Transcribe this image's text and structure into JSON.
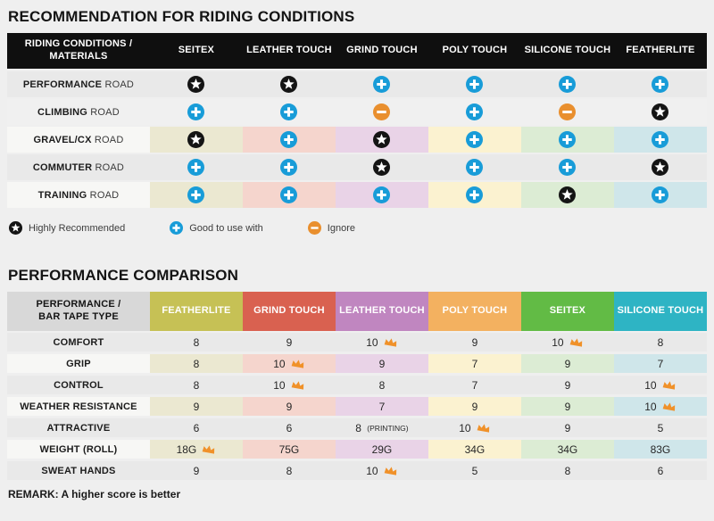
{
  "colors": {
    "page_bg": "#efefef",
    "table1_header_bg": "#0f0f0f",
    "row_gray_dark": "#e9e9e9",
    "row_gray_light": "#f0f0f0",
    "row_label_light": "#f7f7f5",
    "icon_star": "#141414",
    "icon_plus": "#189cd8",
    "icon_minus": "#e98f2e",
    "icon_crown": "#f09129",
    "tints": [
      "#ebe8d1",
      "#f5d5cd",
      "#e9d3e7",
      "#fbf2d0",
      "#dcecd4",
      "#cfe6ea"
    ],
    "t2_header_label_bg": "#d8d8d8"
  },
  "table1": {
    "title": "RECOMMENDATION FOR RIDING CONDITIONS",
    "header_label": "RIDING CONDITIONS / MATERIALS",
    "columns": [
      "SEITEX",
      "LEATHER TOUCH",
      "GRIND TOUCH",
      "POLY TOUCH",
      "SILICONE TOUCH",
      "FEATHERLITE"
    ],
    "rows": [
      {
        "label_strong": "PERFORMANCE",
        "label_rest": "ROAD",
        "shade": "dark",
        "cells": [
          "star",
          "star",
          "plus",
          "plus",
          "plus",
          "plus"
        ]
      },
      {
        "label_strong": "CLIMBING",
        "label_rest": "ROAD",
        "shade": "light",
        "cells": [
          "plus",
          "plus",
          "minus",
          "plus",
          "minus",
          "star"
        ]
      },
      {
        "label_strong": "GRAVEL/CX",
        "label_rest": "ROAD",
        "shade": "tinted",
        "cells": [
          "star",
          "plus",
          "star",
          "plus",
          "plus",
          "plus"
        ]
      },
      {
        "label_strong": "COMMUTER",
        "label_rest": "ROAD",
        "shade": "dark",
        "cells": [
          "plus",
          "plus",
          "star",
          "plus",
          "plus",
          "star"
        ]
      },
      {
        "label_strong": "TRAINING",
        "label_rest": "ROAD",
        "shade": "tinted",
        "cells": [
          "plus",
          "plus",
          "plus",
          "plus",
          "star",
          "plus"
        ]
      }
    ],
    "legend": [
      {
        "icon": "star",
        "label": "Highly Recommended"
      },
      {
        "icon": "plus",
        "label": "Good to use with"
      },
      {
        "icon": "minus",
        "label": "Ignore"
      }
    ]
  },
  "table2": {
    "title": "PERFORMANCE COMPARISON",
    "header_label": "PERFORMANCE / BAR TAPE TYPE",
    "columns": [
      {
        "label": "FEATHERLITE",
        "color": "#c6c155"
      },
      {
        "label": "GRIND TOUCH",
        "color": "#d96150"
      },
      {
        "label": "LEATHER TOUCH",
        "color": "#c086c0"
      },
      {
        "label": "POLY TOUCH",
        "color": "#f3b160"
      },
      {
        "label": "SEITEX",
        "color": "#62bb45"
      },
      {
        "label": "SILICONE TOUCH",
        "color": "#2eb4c4"
      }
    ],
    "rows": [
      {
        "label": "COMFORT",
        "shade": "dark",
        "cells": [
          {
            "v": "8"
          },
          {
            "v": "9"
          },
          {
            "v": "10",
            "crown": true
          },
          {
            "v": "9"
          },
          {
            "v": "10",
            "crown": true
          },
          {
            "v": "8"
          }
        ]
      },
      {
        "label": "GRIP",
        "shade": "tinted",
        "cells": [
          {
            "v": "8"
          },
          {
            "v": "10",
            "crown": true
          },
          {
            "v": "9"
          },
          {
            "v": "7"
          },
          {
            "v": "9"
          },
          {
            "v": "7"
          }
        ]
      },
      {
        "label": "CONTROL",
        "shade": "dark",
        "cells": [
          {
            "v": "8"
          },
          {
            "v": "10",
            "crown": true
          },
          {
            "v": "8"
          },
          {
            "v": "7"
          },
          {
            "v": "9"
          },
          {
            "v": "10",
            "crown": true
          }
        ]
      },
      {
        "label": "WEATHER RESISTANCE",
        "shade": "tinted",
        "cells": [
          {
            "v": "9"
          },
          {
            "v": "9"
          },
          {
            "v": "7"
          },
          {
            "v": "9"
          },
          {
            "v": "9"
          },
          {
            "v": "10",
            "crown": true
          }
        ]
      },
      {
        "label": "ATTRACTIVE",
        "shade": "dark",
        "cells": [
          {
            "v": "6"
          },
          {
            "v": "6"
          },
          {
            "v": "8",
            "suffix": "(PRINTING)"
          },
          {
            "v": "10",
            "crown": true
          },
          {
            "v": "9"
          },
          {
            "v": "5"
          }
        ]
      },
      {
        "label": "WEIGHT (ROLL)",
        "shade": "tinted",
        "cells": [
          {
            "v": "18G",
            "crown": true
          },
          {
            "v": "75G"
          },
          {
            "v": "29G"
          },
          {
            "v": "34G"
          },
          {
            "v": "34G"
          },
          {
            "v": "83G"
          }
        ]
      },
      {
        "label": "SWEAT HANDS",
        "shade": "dark",
        "cells": [
          {
            "v": "9"
          },
          {
            "v": "8"
          },
          {
            "v": "10",
            "crown": true
          },
          {
            "v": "5"
          },
          {
            "v": "8"
          },
          {
            "v": "6"
          }
        ]
      }
    ],
    "remark": "REMARK: A higher score is better"
  }
}
